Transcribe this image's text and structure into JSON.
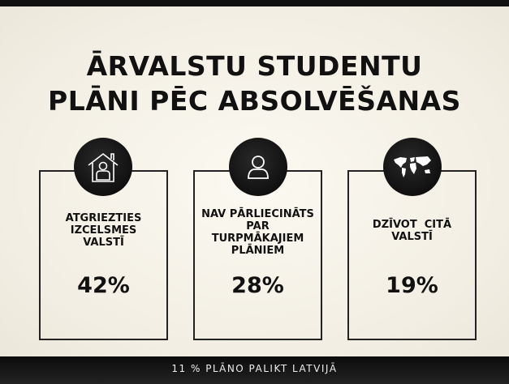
{
  "title": {
    "line1": "ĀRVALSTU STUDENTU",
    "line2": "PLĀNI PĒC ABSOLVĒŠANAS"
  },
  "cards": [
    {
      "icon": "house-person-icon",
      "label_lines": [
        "ATGRIEZTIES",
        "IZCELSMES",
        "VALSTĪ"
      ],
      "percent": "42%"
    },
    {
      "icon": "person-icon",
      "label_lines": [
        "NAV PĀRLIECINĀTS",
        "PAR",
        "TURPMĀKAJIEM",
        "PLĀNIEM"
      ],
      "percent": "28%"
    },
    {
      "icon": "world-map-icon",
      "label_lines": [
        "DZĪVOT  CITĀ",
        "VALSTĪ"
      ],
      "percent": "19%"
    }
  ],
  "footer": {
    "text": "11 % PLĀNO PALIKT LATVIJĀ"
  }
}
